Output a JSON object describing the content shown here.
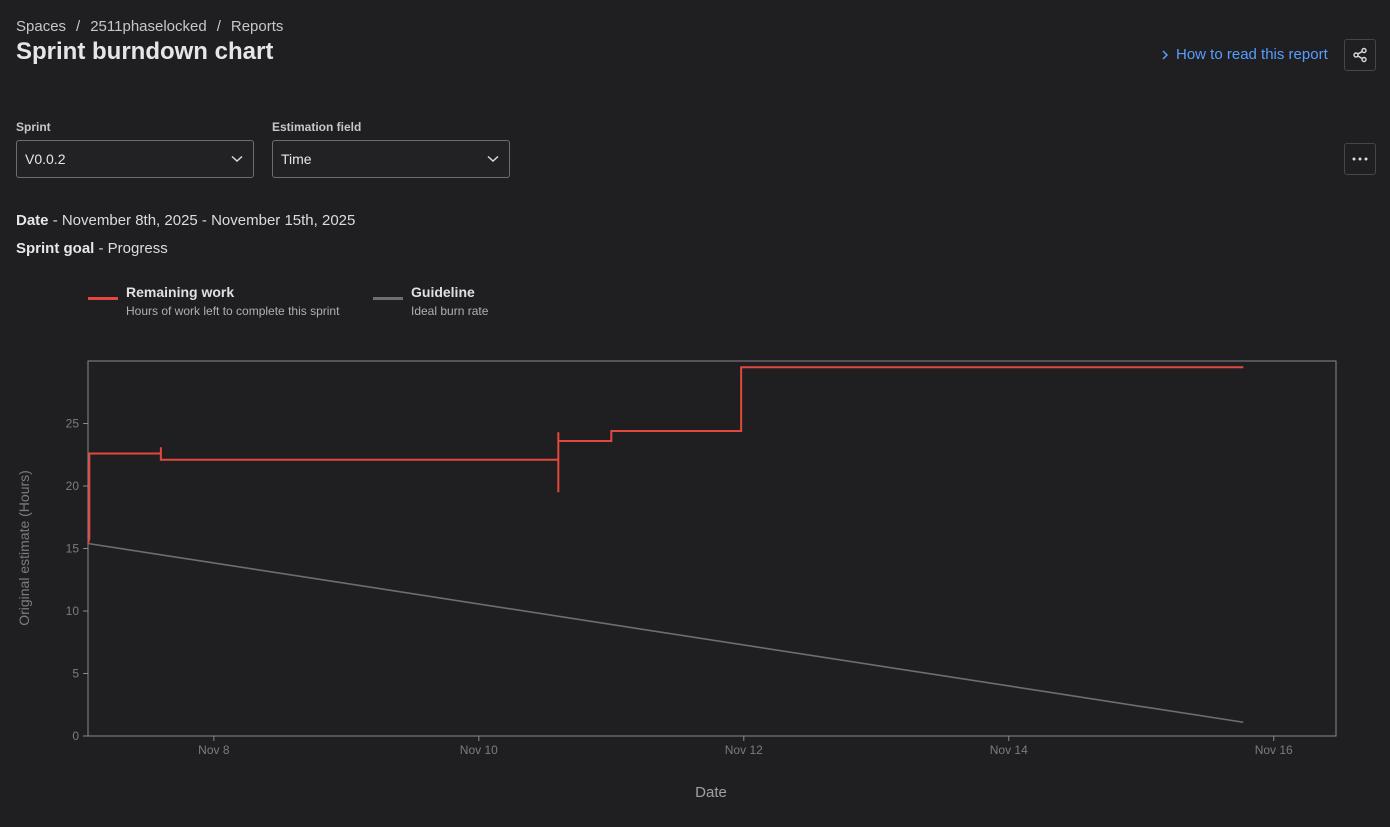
{
  "breadcrumbs": [
    "Spaces",
    "2511phaselocked",
    "Reports"
  ],
  "breadcrumb_separator": "/",
  "header": {
    "title": "Sprint burndown chart",
    "help_link": "How to read this report"
  },
  "filters": [
    {
      "label": "Sprint",
      "value": "V0.0.2"
    },
    {
      "label": "Estimation field",
      "value": "Time"
    }
  ],
  "info": [
    {
      "label": "Date",
      "value": "- November 8th, 2025 - November 15th, 2025"
    },
    {
      "label": "Sprint goal",
      "value": "- Progress"
    }
  ],
  "chart_data": {
    "type": "line",
    "x_label": "Date",
    "y_label": "Original estimate (Hours)",
    "xlim": [
      7.05,
      16.47
    ],
    "ylim": [
      0,
      30
    ],
    "xticks": [
      {
        "value": 8,
        "label": "Nov 8"
      },
      {
        "value": 10,
        "label": "Nov 10"
      },
      {
        "value": 12,
        "label": "Nov 12"
      },
      {
        "value": 14,
        "label": "Nov 14"
      },
      {
        "value": 16,
        "label": "Nov 16"
      }
    ],
    "yticks": [
      0,
      5,
      10,
      15,
      20,
      25
    ],
    "step": true,
    "series": [
      {
        "name": "Remaining work",
        "description": "Hours of work left to complete this sprint",
        "color": "#e2483d",
        "x": [
          7.05,
          7.06,
          7.06,
          7.6,
          7.6,
          7.6,
          10.6,
          10.6,
          10.6,
          10.6,
          11.0,
          11.0,
          11.98,
          11.98,
          15.77
        ],
        "values": [
          15.4,
          15.8,
          22.6,
          22.6,
          23.1,
          22.1,
          22.1,
          19.5,
          24.3,
          23.6,
          23.6,
          24.4,
          24.4,
          29.5,
          29.5
        ]
      },
      {
        "name": "Guideline",
        "description": "Ideal burn rate",
        "color": "#6e6e72",
        "x": [
          7.05,
          15.77
        ],
        "values": [
          15.4,
          1.1
        ]
      }
    ]
  }
}
